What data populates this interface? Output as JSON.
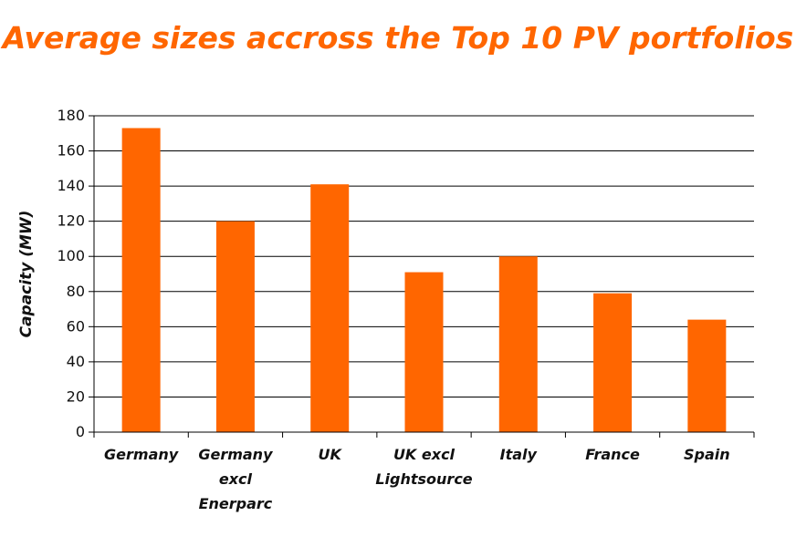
{
  "chart_data": {
    "type": "bar",
    "title": "Average sizes accross the Top 10 PV portfolios",
    "xlabel": "",
    "ylabel": "Capacity (MW)",
    "categories": [
      [
        "Germany"
      ],
      [
        "Germany",
        "excl",
        "Enerparc"
      ],
      [
        "UK"
      ],
      [
        "UK excl",
        "Lightsource"
      ],
      [
        "Italy"
      ],
      [
        "France"
      ],
      [
        "Spain"
      ]
    ],
    "values": [
      173,
      120,
      141,
      91,
      100,
      79,
      64
    ],
    "ylim": [
      0,
      180
    ],
    "yticks": [
      0,
      20,
      40,
      60,
      80,
      100,
      120,
      140,
      160,
      180
    ],
    "grid": true,
    "legend": "none",
    "bar_color": "#ff6600",
    "title_color": "#ff6600"
  }
}
